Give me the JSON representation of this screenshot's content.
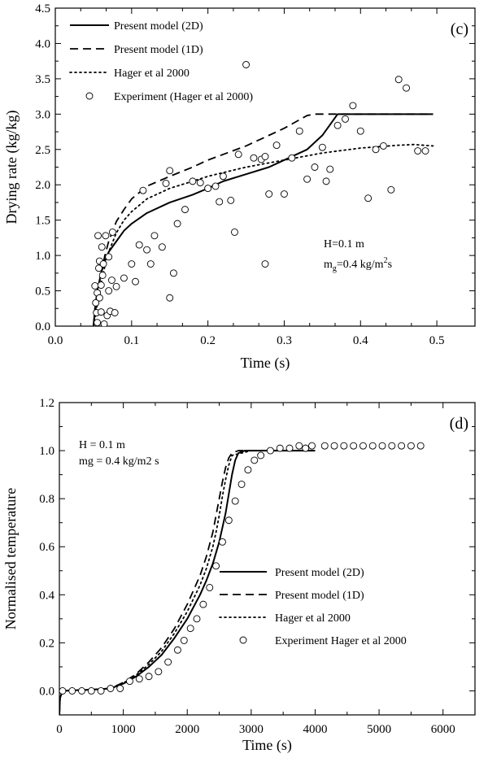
{
  "chart_data": [
    {
      "type": "line",
      "panel_label": "(c)",
      "xlabel": "Time (s)",
      "ylabel": "Drying rate (kg/kg)",
      "xlim": [
        0,
        0.55
      ],
      "ylim": [
        0,
        4.5
      ],
      "xticks": [
        0.0,
        0.1,
        0.2,
        0.3,
        0.4,
        0.5
      ],
      "xtick_labels": [
        "0.0",
        "0.1",
        "0.2",
        "0.3",
        "0.4",
        "0.5"
      ],
      "yticks": [
        0.0,
        0.5,
        1.0,
        1.5,
        2.0,
        2.5,
        3.0,
        3.5,
        4.0,
        4.5
      ],
      "ytick_labels": [
        "0.0",
        "0.5",
        "1.0",
        "1.5",
        "2.0",
        "2.5",
        "3.0",
        "3.5",
        "4.0",
        "4.5"
      ],
      "legend_position": "top-left",
      "annotation_lines": [
        {
          "text": "H=0.1 m",
          "sub": "",
          "sup": "",
          "tail": ""
        },
        {
          "text": "m",
          "sub": "g",
          "mid": "=0.4 kg/m",
          "sup": "2",
          "tail": "s"
        }
      ],
      "series": [
        {
          "name": "Present model (2D)",
          "style": "solid",
          "x": [
            0.05,
            0.052,
            0.055,
            0.06,
            0.065,
            0.07,
            0.08,
            0.09,
            0.1,
            0.12,
            0.15,
            0.18,
            0.2,
            0.22,
            0.25,
            0.28,
            0.3,
            0.33,
            0.35,
            0.37,
            0.38,
            0.4,
            0.45,
            0.495
          ],
          "y": [
            0.0,
            0.25,
            0.5,
            0.75,
            0.92,
            1.05,
            1.2,
            1.35,
            1.45,
            1.6,
            1.75,
            1.86,
            1.95,
            2.05,
            2.15,
            2.25,
            2.35,
            2.5,
            2.7,
            3.0,
            3.0,
            3.0,
            3.0,
            3.0
          ]
        },
        {
          "name": "Present model (1D)",
          "style": "dashed",
          "x": [
            0.05,
            0.055,
            0.06,
            0.065,
            0.07,
            0.08,
            0.09,
            0.1,
            0.12,
            0.15,
            0.18,
            0.2,
            0.25,
            0.3,
            0.33,
            0.34,
            0.35,
            0.4,
            0.45,
            0.495
          ],
          "y": [
            0.0,
            0.4,
            0.75,
            1.0,
            1.2,
            1.48,
            1.65,
            1.8,
            1.98,
            2.12,
            2.25,
            2.35,
            2.55,
            2.8,
            2.98,
            3.0,
            3.0,
            3.0,
            3.0,
            3.0
          ]
        },
        {
          "name": "Hager et al 2000",
          "style": "dotted",
          "x": [
            0.05,
            0.055,
            0.06,
            0.065,
            0.07,
            0.08,
            0.09,
            0.1,
            0.12,
            0.15,
            0.18,
            0.2,
            0.25,
            0.3,
            0.35,
            0.4,
            0.45,
            0.47,
            0.495
          ],
          "y": [
            0.0,
            0.3,
            0.6,
            0.85,
            1.05,
            1.32,
            1.5,
            1.62,
            1.8,
            1.95,
            2.05,
            2.12,
            2.25,
            2.35,
            2.45,
            2.52,
            2.56,
            2.57,
            2.55
          ]
        },
        {
          "name": "Experiment (Hager et al 2000)",
          "style": "markers",
          "x": [
            0.052,
            0.053,
            0.054,
            0.055,
            0.055,
            0.056,
            0.057,
            0.058,
            0.058,
            0.06,
            0.06,
            0.061,
            0.062,
            0.063,
            0.064,
            0.066,
            0.068,
            0.07,
            0.07,
            0.072,
            0.074,
            0.075,
            0.078,
            0.08,
            0.09,
            0.1,
            0.105,
            0.11,
            0.115,
            0.12,
            0.125,
            0.13,
            0.14,
            0.145,
            0.15,
            0.15,
            0.155,
            0.16,
            0.17,
            0.18,
            0.19,
            0.2,
            0.21,
            0.215,
            0.22,
            0.23,
            0.235,
            0.24,
            0.25,
            0.26,
            0.27,
            0.275,
            0.275,
            0.28,
            0.29,
            0.3,
            0.31,
            0.32,
            0.33,
            0.34,
            0.35,
            0.355,
            0.36,
            0.37,
            0.38,
            0.39,
            0.4,
            0.41,
            0.42,
            0.43,
            0.44,
            0.45,
            0.46,
            0.475,
            0.485
          ],
          "y": [
            0.57,
            0.33,
            0.19,
            0.05,
            0.47,
            1.28,
            0.82,
            0.4,
            0.92,
            0.2,
            0.58,
            1.12,
            0.72,
            0.88,
            0.03,
            1.28,
            0.15,
            0.5,
            0.98,
            0.21,
            0.65,
            1.33,
            0.19,
            0.56,
            0.68,
            0.88,
            0.63,
            1.15,
            1.92,
            1.08,
            0.88,
            1.28,
            1.12,
            2.02,
            2.2,
            0.4,
            0.75,
            1.45,
            1.65,
            2.05,
            2.03,
            1.95,
            1.98,
            1.76,
            2.12,
            1.78,
            1.33,
            2.43,
            3.7,
            2.38,
            2.36,
            0.88,
            2.4,
            1.87,
            2.56,
            1.87,
            2.38,
            2.76,
            2.08,
            2.25,
            2.53,
            2.05,
            2.22,
            2.84,
            2.93,
            3.12,
            2.76,
            1.81,
            2.5,
            2.55,
            1.93,
            3.49,
            3.37,
            2.48,
            2.48
          ]
        }
      ]
    },
    {
      "type": "line",
      "panel_label": "(d)",
      "xlabel": "Time (s)",
      "ylabel": "Normalised temperature",
      "xlim": [
        0,
        6500
      ],
      "ylim": [
        -0.1,
        1.2
      ],
      "xticks": [
        0,
        1000,
        2000,
        3000,
        4000,
        5000,
        6000
      ],
      "xtick_labels": [
        "0",
        "1000",
        "2000",
        "3000",
        "4000",
        "5000",
        "6000"
      ],
      "yticks": [
        0.0,
        0.2,
        0.4,
        0.6,
        0.8,
        1.0,
        1.2
      ],
      "ytick_labels": [
        "0.0",
        "0.2",
        "0.4",
        "0.6",
        "0.8",
        "1.0",
        "1.2"
      ],
      "legend_position": "bottom-right",
      "annotation_lines": [
        {
          "text": "H = 0.1 m"
        },
        {
          "text": "mg = 0.4 kg/m2 s"
        }
      ],
      "series": [
        {
          "name": "Present model (2D)",
          "style": "solid",
          "x": [
            0,
            10,
            50,
            200,
            500,
            800,
            1000,
            1200,
            1400,
            1600,
            1800,
            2000,
            2200,
            2300,
            2400,
            2500,
            2600,
            2650,
            2700,
            2750,
            2800,
            2900,
            3000,
            3500,
            4000
          ],
          "y": [
            -0.1,
            -0.03,
            0.0,
            0.002,
            0.005,
            0.01,
            0.03,
            0.06,
            0.1,
            0.15,
            0.22,
            0.3,
            0.4,
            0.46,
            0.53,
            0.62,
            0.74,
            0.82,
            0.9,
            0.96,
            0.99,
            1.0,
            1.0,
            1.0,
            1.0
          ]
        },
        {
          "name": "Present model (1D)",
          "style": "dashed",
          "x": [
            0,
            10,
            50,
            200,
            500,
            800,
            1000,
            1200,
            1400,
            1600,
            1800,
            2000,
            2200,
            2300,
            2400,
            2500,
            2550,
            2600,
            2650,
            2700,
            2800,
            3000,
            3500
          ],
          "y": [
            -0.1,
            -0.03,
            0.0,
            0.002,
            0.005,
            0.01,
            0.035,
            0.07,
            0.12,
            0.18,
            0.26,
            0.36,
            0.48,
            0.56,
            0.66,
            0.8,
            0.87,
            0.93,
            0.97,
            0.99,
            1.0,
            1.0,
            1.0
          ]
        },
        {
          "name": "Hager et al 2000",
          "style": "dotted",
          "x": [
            0,
            10,
            50,
            200,
            500,
            800,
            1000,
            1200,
            1400,
            1600,
            1800,
            2000,
            2200,
            2300,
            2400,
            2450,
            2500,
            2550,
            2600,
            2650,
            2700,
            3000,
            3500
          ],
          "y": [
            -0.1,
            -0.03,
            0.0,
            0.002,
            0.005,
            0.01,
            0.032,
            0.066,
            0.11,
            0.165,
            0.24,
            0.33,
            0.44,
            0.51,
            0.6,
            0.66,
            0.73,
            0.81,
            0.88,
            0.94,
            0.98,
            1.0,
            1.0
          ]
        },
        {
          "name": "Experiment Hager et al 2000",
          "style": "markers",
          "x": [
            50,
            200,
            350,
            500,
            650,
            800,
            950,
            1100,
            1250,
            1400,
            1550,
            1700,
            1850,
            1950,
            2050,
            2150,
            2250,
            2350,
            2450,
            2550,
            2650,
            2750,
            2850,
            2950,
            3050,
            3150,
            3300,
            3450,
            3600,
            3750,
            3850,
            3950,
            4150,
            4300,
            4450,
            4600,
            4750,
            4900,
            5050,
            5200,
            5350,
            5500,
            5650
          ],
          "y": [
            0.0,
            0.0,
            0.0,
            0.0,
            0.0,
            0.01,
            0.01,
            0.04,
            0.05,
            0.06,
            0.08,
            0.12,
            0.17,
            0.21,
            0.26,
            0.3,
            0.36,
            0.43,
            0.52,
            0.62,
            0.71,
            0.79,
            0.86,
            0.92,
            0.96,
            0.98,
            1.0,
            1.01,
            1.01,
            1.02,
            1.01,
            1.02,
            1.02,
            1.02,
            1.02,
            1.02,
            1.02,
            1.02,
            1.02,
            1.02,
            1.02,
            1.02,
            1.02
          ]
        }
      ]
    }
  ]
}
